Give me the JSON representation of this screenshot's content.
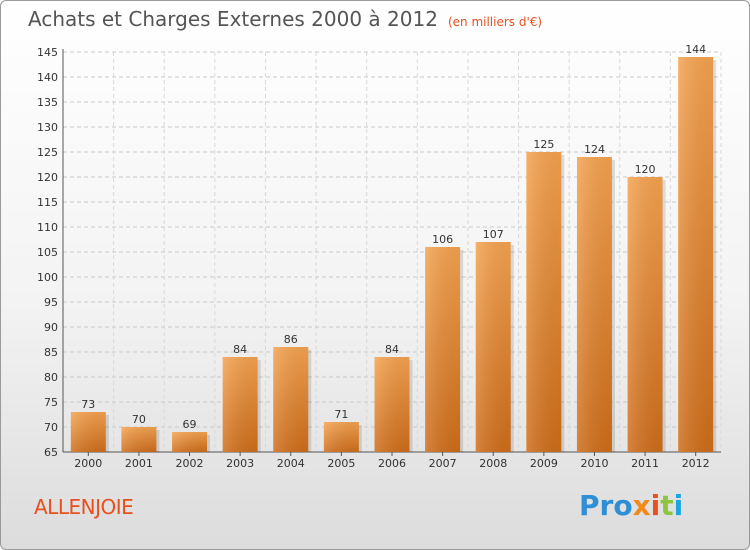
{
  "chart_data": {
    "type": "bar",
    "title": "Achats et Charges Externes 2000 à 2012",
    "subtitle": "(en milliers d'€)",
    "categories": [
      "2000",
      "2001",
      "2002",
      "2003",
      "2004",
      "2005",
      "2006",
      "2007",
      "2008",
      "2009",
      "2010",
      "2011",
      "2012"
    ],
    "values": [
      73,
      70,
      69,
      84,
      86,
      71,
      84,
      106,
      107,
      125,
      124,
      120,
      144
    ],
    "ylim": [
      65,
      145
    ],
    "yticks": [
      65,
      70,
      75,
      80,
      85,
      90,
      95,
      100,
      105,
      110,
      115,
      120,
      125,
      130,
      135,
      140,
      145
    ],
    "grid": true,
    "bar_color": "#f29a45",
    "xlabel": "",
    "ylabel": ""
  },
  "commune": "ALLENJOIE",
  "logo": {
    "p1": "Pro",
    "p2": "x",
    "p3": "i",
    "p4": "t",
    "p5": "i"
  },
  "colors": {
    "accent": "#e8501e"
  }
}
